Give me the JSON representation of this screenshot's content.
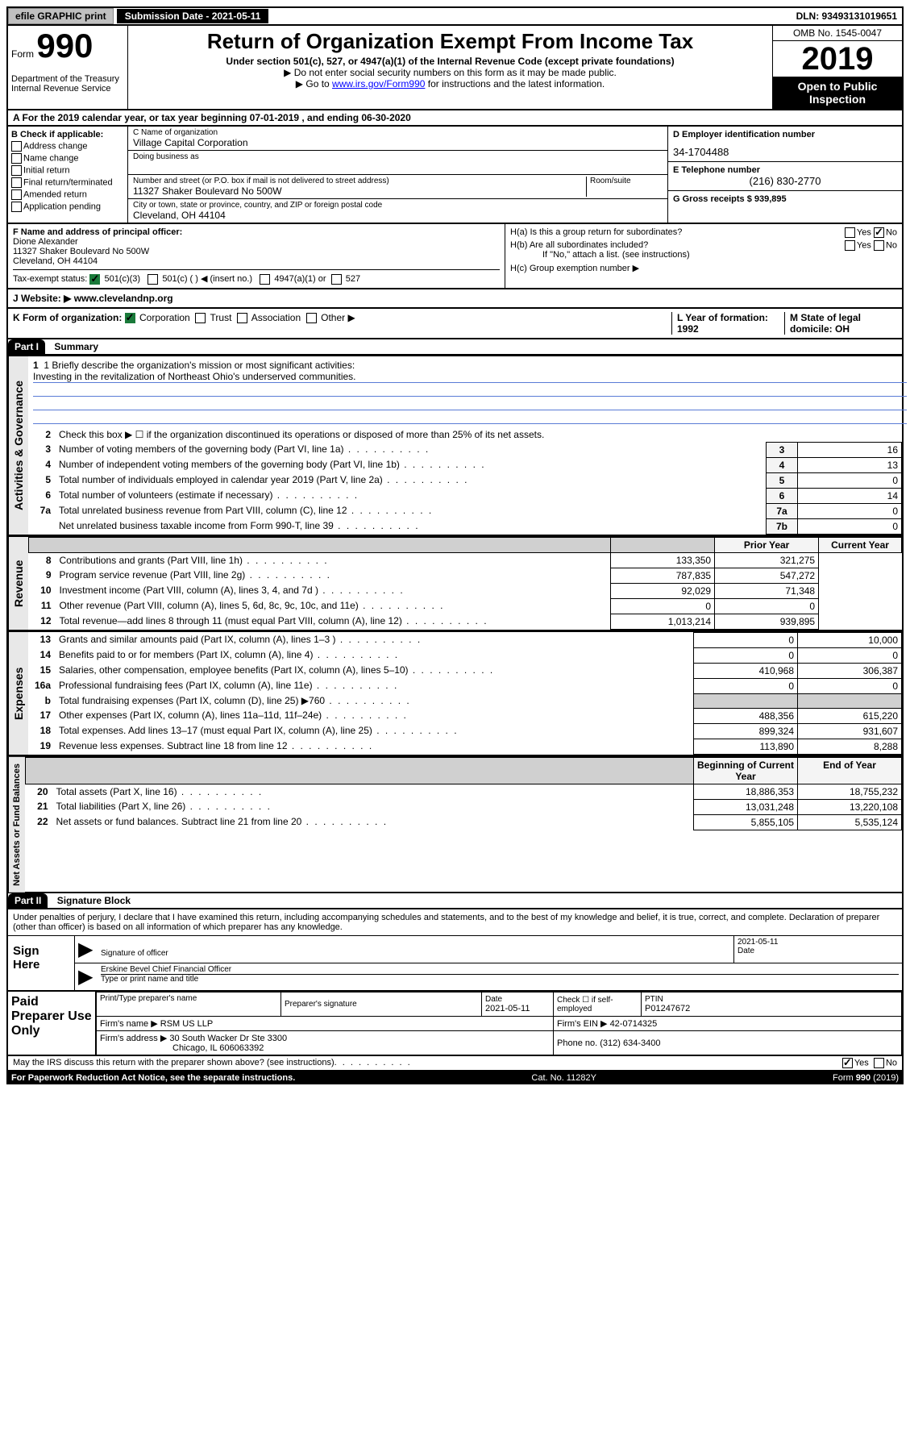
{
  "topbar": {
    "efile": "efile GRAPHIC print",
    "submission_label": "Submission Date - 2021-05-11",
    "dln": "DLN: 93493131019651"
  },
  "header": {
    "form_label": "Form",
    "form_number": "990",
    "title": "Return of Organization Exempt From Income Tax",
    "subtitle": "Under section 501(c), 527, or 4947(a)(1) of the Internal Revenue Code (except private foundations)",
    "note1": "▶ Do not enter social security numbers on this form as it may be made public.",
    "note2_pre": "▶ Go to ",
    "note2_link": "www.irs.gov/Form990",
    "note2_post": " for instructions and the latest information.",
    "dept": "Department of the Treasury\nInternal Revenue Service",
    "omb": "OMB No. 1545-0047",
    "year": "2019",
    "open_public": "Open to Public Inspection"
  },
  "row_a": "A   For the 2019 calendar year, or tax year beginning 07-01-2019    , and ending 06-30-2020",
  "col_b": {
    "heading": "B Check if applicable:",
    "items": [
      "Address change",
      "Name change",
      "Initial return",
      "Final return/terminated",
      "Amended return",
      "Application pending"
    ]
  },
  "col_c": {
    "name_label": "C Name of organization",
    "name": "Village Capital Corporation",
    "dba_label": "Doing business as",
    "dba": "",
    "addr_label": "Number and street (or P.O. box if mail is not delivered to street address)",
    "room_label": "Room/suite",
    "addr": "11327 Shaker Boulevard No 500W",
    "city_label": "City or town, state or province, country, and ZIP or foreign postal code",
    "city": "Cleveland, OH  44104"
  },
  "col_d": {
    "ein_label": "D Employer identification number",
    "ein": "34-1704488",
    "phone_label": "E Telephone number",
    "phone": "(216) 830-2770",
    "gross_label": "G Gross receipts $ 939,895"
  },
  "row_f": {
    "label": "F  Name and address of principal officer:",
    "name": "Dione Alexander",
    "addr": "11327 Shaker Boulevard No 500W",
    "city": "Cleveland, OH  44104",
    "tax_status": "Tax-exempt status:",
    "status_501c3": "501(c)(3)",
    "status_501c": "501(c) (  ) ◀ (insert no.)",
    "status_4947": "4947(a)(1) or",
    "status_527": "527"
  },
  "row_h": {
    "ha": "H(a)  Is this a group return for subordinates?",
    "hb": "H(b)  Are all subordinates included?",
    "hb_note": "If \"No,\" attach a list. (see instructions)",
    "hc": "H(c)  Group exemption number ▶"
  },
  "row_j": "J   Website: ▶  www.clevelandnp.org",
  "row_k": {
    "left": "K Form of organization:",
    "corp": "Corporation",
    "trust": "Trust",
    "assoc": "Association",
    "other": "Other ▶",
    "l": "L Year of formation: 1992",
    "m": "M State of legal domicile: OH"
  },
  "part1": {
    "header": "Part I",
    "title": "Summary",
    "mission_label": "1  Briefly describe the organization's mission or most significant activities:",
    "mission": "Investing in the revitalization of Northeast Ohio's underserved communities.",
    "line2": "Check this box ▶ ☐  if the organization discontinued its operations or disposed of more than 25% of its net assets.",
    "lines": [
      {
        "num": "3",
        "text": "Number of voting members of the governing body (Part VI, line 1a)",
        "box": "3",
        "val": "16"
      },
      {
        "num": "4",
        "text": "Number of independent voting members of the governing body (Part VI, line 1b)",
        "box": "4",
        "val": "13"
      },
      {
        "num": "5",
        "text": "Total number of individuals employed in calendar year 2019 (Part V, line 2a)",
        "box": "5",
        "val": "0"
      },
      {
        "num": "6",
        "text": "Total number of volunteers (estimate if necessary)",
        "box": "6",
        "val": "14"
      },
      {
        "num": "7a",
        "text": "Total unrelated business revenue from Part VIII, column (C), line 12",
        "box": "7a",
        "val": "0"
      },
      {
        "num": "",
        "text": "Net unrelated business taxable income from Form 990-T, line 39",
        "box": "7b",
        "val": "0"
      }
    ],
    "col_headers": {
      "prior": "Prior Year",
      "current": "Current Year"
    },
    "revenue": [
      {
        "num": "8",
        "text": "Contributions and grants (Part VIII, line 1h)",
        "p": "133,350",
        "c": "321,275"
      },
      {
        "num": "9",
        "text": "Program service revenue (Part VIII, line 2g)",
        "p": "787,835",
        "c": "547,272"
      },
      {
        "num": "10",
        "text": "Investment income (Part VIII, column (A), lines 3, 4, and 7d )",
        "p": "92,029",
        "c": "71,348"
      },
      {
        "num": "11",
        "text": "Other revenue (Part VIII, column (A), lines 5, 6d, 8c, 9c, 10c, and 11e)",
        "p": "0",
        "c": "0"
      },
      {
        "num": "12",
        "text": "Total revenue—add lines 8 through 11 (must equal Part VIII, column (A), line 12)",
        "p": "1,013,214",
        "c": "939,895"
      }
    ],
    "expenses": [
      {
        "num": "13",
        "text": "Grants and similar amounts paid (Part IX, column (A), lines 1–3 )",
        "p": "0",
        "c": "10,000"
      },
      {
        "num": "14",
        "text": "Benefits paid to or for members (Part IX, column (A), line 4)",
        "p": "0",
        "c": "0"
      },
      {
        "num": "15",
        "text": "Salaries, other compensation, employee benefits (Part IX, column (A), lines 5–10)",
        "p": "410,968",
        "c": "306,387"
      },
      {
        "num": "16a",
        "text": "Professional fundraising fees (Part IX, column (A), line 11e)",
        "p": "0",
        "c": "0"
      },
      {
        "num": "b",
        "text": "Total fundraising expenses (Part IX, column (D), line 25) ▶760",
        "p": "",
        "c": "",
        "shade": true
      },
      {
        "num": "17",
        "text": "Other expenses (Part IX, column (A), lines 11a–11d, 11f–24e)",
        "p": "488,356",
        "c": "615,220"
      },
      {
        "num": "18",
        "text": "Total expenses. Add lines 13–17 (must equal Part IX, column (A), line 25)",
        "p": "899,324",
        "c": "931,607"
      },
      {
        "num": "19",
        "text": "Revenue less expenses. Subtract line 18 from line 12",
        "p": "113,890",
        "c": "8,288"
      }
    ],
    "net_headers": {
      "begin": "Beginning of Current Year",
      "end": "End of Year"
    },
    "netassets": [
      {
        "num": "20",
        "text": "Total assets (Part X, line 16)",
        "p": "18,886,353",
        "c": "18,755,232"
      },
      {
        "num": "21",
        "text": "Total liabilities (Part X, line 26)",
        "p": "13,031,248",
        "c": "13,220,108"
      },
      {
        "num": "22",
        "text": "Net assets or fund balances. Subtract line 21 from line 20",
        "p": "5,855,105",
        "c": "5,535,124"
      }
    ],
    "sidebar_gov": "Activities & Governance",
    "sidebar_rev": "Revenue",
    "sidebar_exp": "Expenses",
    "sidebar_net": "Net Assets or Fund Balances"
  },
  "part2": {
    "header": "Part II",
    "title": "Signature Block",
    "declaration": "Under penalties of perjury, I declare that I have examined this return, including accompanying schedules and statements, and to the best of my knowledge and belief, it is true, correct, and complete. Declaration of preparer (other than officer) is based on all information of which preparer has any knowledge.",
    "sign_here": "Sign Here",
    "sig_date": "2021-05-11",
    "sig_officer_label": "Signature of officer",
    "date_label": "Date",
    "officer_name": "Erskine Bevel  Chief Financial Officer",
    "officer_label": "Type or print name and title",
    "paid_label": "Paid Preparer Use Only",
    "prep_name_label": "Print/Type preparer's name",
    "prep_sig_label": "Preparer's signature",
    "prep_date_label": "Date",
    "prep_date": "2021-05-11",
    "self_emp": "Check ☐ if self-employed",
    "ptin_label": "PTIN",
    "ptin": "P01247672",
    "firm_name_label": "Firm's name    ▶",
    "firm_name": "RSM US LLP",
    "firm_ein_label": "Firm's EIN ▶",
    "firm_ein": "42-0714325",
    "firm_addr_label": "Firm's address ▶",
    "firm_addr": "30 South Wacker Dr Ste 3300",
    "firm_city": "Chicago, IL  606063392",
    "firm_phone_label": "Phone no.",
    "firm_phone": "(312) 634-3400",
    "discuss": "May the IRS discuss this return with the preparer shown above? (see instructions)",
    "yes": "Yes",
    "no": "No"
  },
  "footer": {
    "left": "For Paperwork Reduction Act Notice, see the separate instructions.",
    "center": "Cat. No. 11282Y",
    "right": "Form 990 (2019)"
  }
}
